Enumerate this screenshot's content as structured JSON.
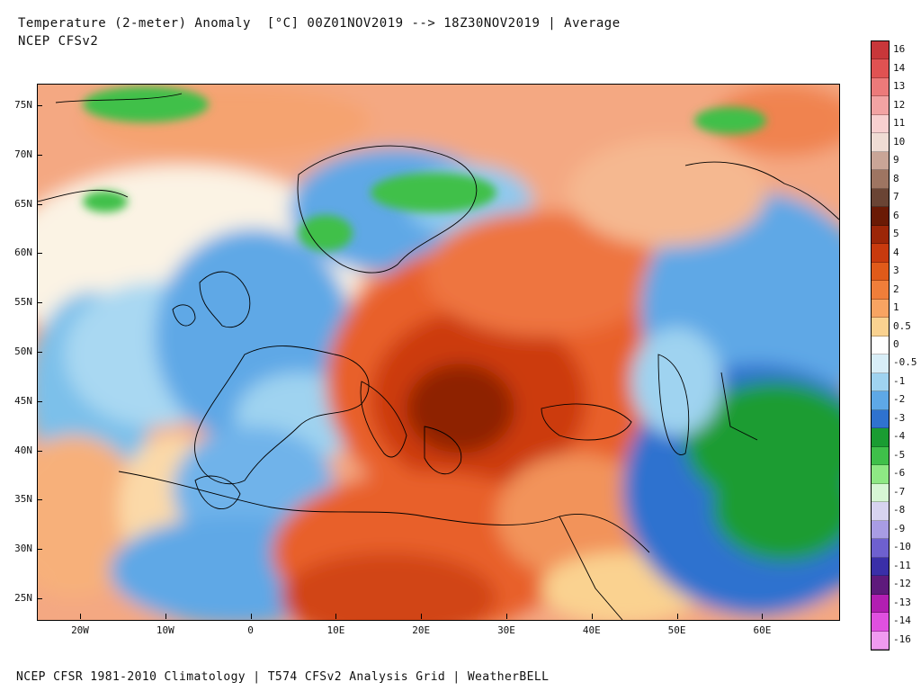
{
  "header": {
    "title_line_1": "Temperature (2-meter) Anomaly  [°C] 00Z01NOV2019 --> 18Z30NOV2019 | Average",
    "title_line_2": "NCEP CFSv2"
  },
  "footer": {
    "text": "NCEP CFSR 1981-2010 Climatology | T574 CFSv2 Analysis Grid | WeatherBELL"
  },
  "map": {
    "region": "Europe",
    "lat_labels": [
      "75N",
      "70N",
      "65N",
      "60N",
      "55N",
      "50N",
      "45N",
      "40N",
      "35N",
      "30N",
      "25N"
    ],
    "lon_labels": [
      "20W",
      "10W",
      "0",
      "10E",
      "20E",
      "30E",
      "40E",
      "50E",
      "60E"
    ]
  },
  "legend": {
    "labels": [
      "16",
      "14",
      "13",
      "12",
      "11",
      "10",
      "9",
      "8",
      "7",
      "6",
      "5",
      "4",
      "3",
      "2",
      "1",
      "0.5",
      "0",
      "-0.5",
      "-1",
      "-2",
      "-3",
      "-4",
      "-5",
      "-6",
      "-7",
      "-8",
      "-9",
      "-10",
      "-11",
      "-12",
      "-13",
      "-14",
      "-16"
    ],
    "colors": [
      "#c8373a",
      "#e05252",
      "#ec7a7a",
      "#f2a3a3",
      "#f8d0d0",
      "#efdcd4",
      "#c9a597",
      "#9e7562",
      "#6a4434",
      "#6a1a05",
      "#9c2608",
      "#c83a0e",
      "#e05a1a",
      "#f07e3a",
      "#f8a462",
      "#fad290",
      "#ffffff",
      "#d8eef8",
      "#9fd3f0",
      "#5ea8e6",
      "#2f72cf",
      "#1a9c32",
      "#3fc04a",
      "#8ee884",
      "#d6f6d4",
      "#d7d3f0",
      "#a89ce4",
      "#6e60cf",
      "#3a2fa8",
      "#5e1a7c",
      "#b21eb2",
      "#e050e0",
      "#f09af0"
    ]
  }
}
